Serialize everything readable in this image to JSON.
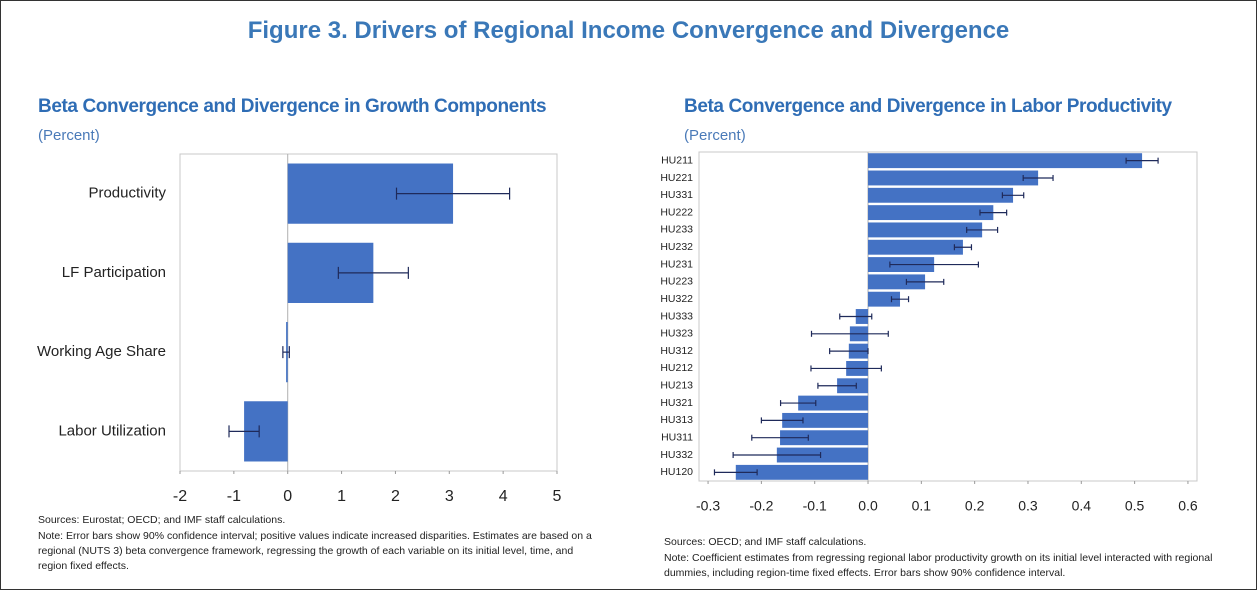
{
  "title": "Figure 3. Drivers of Regional Income Convergence and Divergence",
  "chart_data": [
    {
      "type": "bar",
      "orientation": "horizontal",
      "title": "Beta Convergence and Divergence in Growth Components",
      "subtitle": "(Percent)",
      "categories": [
        "Productivity",
        "LF Participation",
        "Working Age Share",
        "Labor Utilization"
      ],
      "values": [
        3.07,
        1.59,
        -0.03,
        -0.81
      ],
      "errors": [
        1.05,
        0.65,
        0.06,
        0.28
      ],
      "color": "#4472c4",
      "error_color": "#1f2a5a",
      "xlim": [
        -2,
        5
      ],
      "xticks": [
        -2,
        -1,
        0,
        1,
        2,
        3,
        4,
        5
      ],
      "source": "Sources: Eurostat; OECD; and IMF staff calculations.",
      "note": "Note: Error bars show 90% confidence interval; positive values indicate increased disparities. Estimates are based on a regional (NUTS 3) beta convergence framework, regressing the growth of each variable on its initial level, time, and region fixed effects."
    },
    {
      "type": "bar",
      "orientation": "horizontal",
      "title": "Beta Convergence and Divergence in Labor Productivity",
      "subtitle": "(Percent)",
      "categories": [
        "HU211",
        "HU221",
        "HU331",
        "HU222",
        "HU233",
        "HU232",
        "HU231",
        "HU223",
        "HU322",
        "HU333",
        "HU323",
        "HU312",
        "HU212",
        "HU213",
        "HU321",
        "HU313",
        "HU311",
        "HU332",
        "HU120"
      ],
      "values": [
        0.514,
        0.319,
        0.272,
        0.235,
        0.214,
        0.178,
        0.124,
        0.107,
        0.06,
        -0.023,
        -0.034,
        -0.036,
        -0.041,
        -0.058,
        -0.131,
        -0.161,
        -0.165,
        -0.171,
        -0.248
      ],
      "errors": [
        0.03,
        0.028,
        0.02,
        0.025,
        0.029,
        0.016,
        0.083,
        0.035,
        0.016,
        0.03,
        0.072,
        0.036,
        0.066,
        0.036,
        0.033,
        0.039,
        0.053,
        0.082,
        0.04
      ],
      "color": "#4472c4",
      "error_color": "#1f2a5a",
      "xlim": [
        -0.317,
        0.617
      ],
      "xticks": [
        -0.3,
        -0.2,
        -0.1,
        {
          "value": 0,
          "label": "0.0"
        },
        0.1,
        0.2,
        0.3,
        0.4,
        0.5,
        0.6
      ],
      "source": "Sources: OECD; and IMF staff calculations.",
      "note": "Note: Coefficient estimates from regressing regional labor productivity growth on its initial level interacted with regional dummies, including region-time fixed effects. Error bars show 90% confidence interval."
    }
  ]
}
